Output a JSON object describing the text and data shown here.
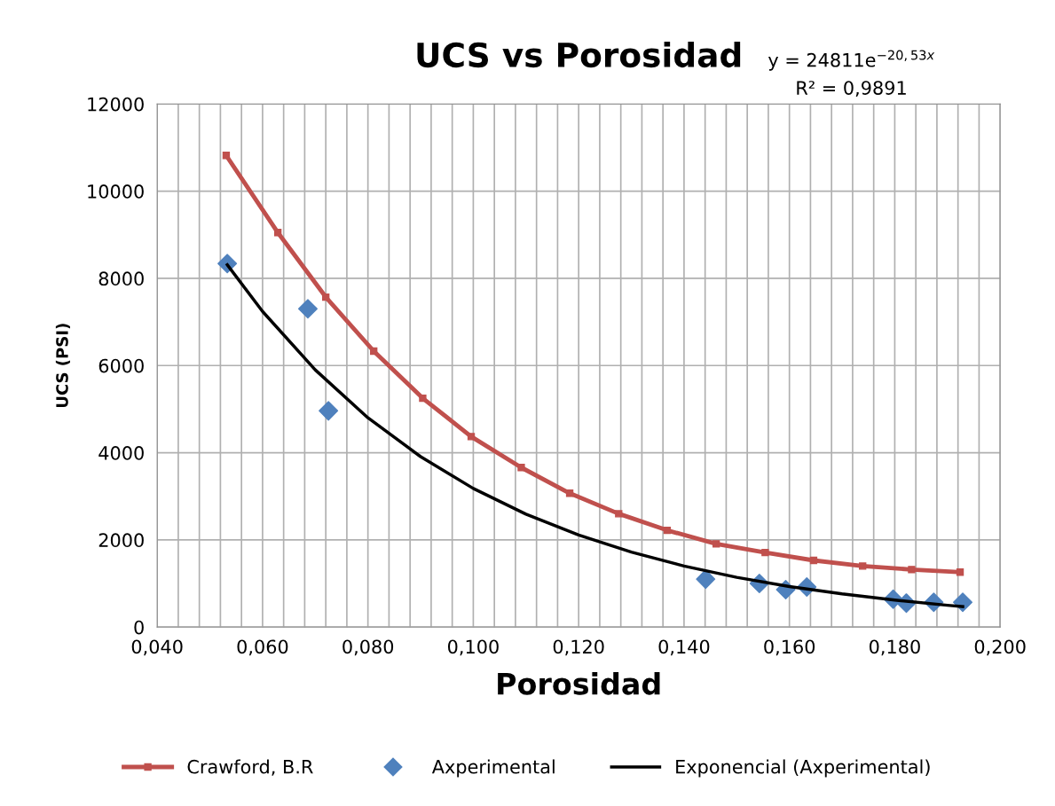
{
  "chart_data": {
    "type": "scatter",
    "title": "UCS vs Porosidad",
    "xlabel": "Porosidad",
    "ylabel": "UCS (PSI)",
    "annotations": [
      "y = 24811e$^{−20,53x}$",
      "R² = 0,9891"
    ],
    "xlim": [
      0.04,
      0.2
    ],
    "ylim": [
      0,
      12000
    ],
    "xticks": [
      {
        "value": 0.04,
        "label": "0,040"
      },
      {
        "value": 0.044,
        "label": null
      },
      {
        "value": 0.048,
        "label": null
      },
      {
        "value": 0.052,
        "label": null
      },
      {
        "value": 0.056,
        "label": null
      },
      {
        "value": 0.06,
        "label": "0,060"
      },
      {
        "value": 0.064,
        "label": null
      },
      {
        "value": 0.068,
        "label": null
      },
      {
        "value": 0.072,
        "label": null
      },
      {
        "value": 0.076,
        "label": null
      },
      {
        "value": 0.08,
        "label": "0,080"
      },
      {
        "value": 0.084,
        "label": null
      },
      {
        "value": 0.088,
        "label": null
      },
      {
        "value": 0.092,
        "label": null
      },
      {
        "value": 0.096,
        "label": null
      },
      {
        "value": 0.1,
        "label": "0,100"
      },
      {
        "value": 0.104,
        "label": null
      },
      {
        "value": 0.108,
        "label": null
      },
      {
        "value": 0.112,
        "label": null
      },
      {
        "value": 0.116,
        "label": null
      },
      {
        "value": 0.12,
        "label": "0,120"
      },
      {
        "value": 0.124,
        "label": null
      },
      {
        "value": 0.128,
        "label": null
      },
      {
        "value": 0.132,
        "label": null
      },
      {
        "value": 0.136,
        "label": null
      },
      {
        "value": 0.14,
        "label": "0,140"
      },
      {
        "value": 0.144,
        "label": null
      },
      {
        "value": 0.148,
        "label": null
      },
      {
        "value": 0.152,
        "label": null
      },
      {
        "value": 0.156,
        "label": null
      },
      {
        "value": 0.16,
        "label": "0,160"
      },
      {
        "value": 0.164,
        "label": null
      },
      {
        "value": 0.168,
        "label": null
      },
      {
        "value": 0.172,
        "label": null
      },
      {
        "value": 0.176,
        "label": null
      },
      {
        "value": 0.18,
        "label": "0,180"
      },
      {
        "value": 0.184,
        "label": null
      },
      {
        "value": 0.188,
        "label": null
      },
      {
        "value": 0.192,
        "label": null
      },
      {
        "value": 0.196,
        "label": null
      },
      {
        "value": 0.2,
        "label": "0,200"
      }
    ],
    "yticks": [
      0,
      2000,
      4000,
      6000,
      8000,
      10000,
      12000
    ],
    "grid": true,
    "legend": "bottom",
    "series": [
      {
        "name": "Crawford, B.R",
        "type": "line",
        "color": "#c0504d",
        "marker": "square",
        "line_style": "solid",
        "x": [
          0.0531,
          0.0629,
          0.072,
          0.0811,
          0.0904,
          0.0996,
          0.1091,
          0.1183,
          0.1276,
          0.1368,
          0.1461,
          0.1554,
          0.1646,
          0.1739,
          0.1832,
          0.1924
        ],
        "values": [
          10820,
          9050,
          7570,
          6330,
          5250,
          4370,
          3660,
          3070,
          2600,
          2220,
          1910,
          1710,
          1530,
          1400,
          1320,
          1260
        ]
      },
      {
        "name": "Axperimental",
        "color": "#4f81bd",
        "marker": "diamond",
        "x": [
          0.0533,
          0.0686,
          0.0725,
          0.1441,
          0.1543,
          0.1593,
          0.1633,
          0.1797,
          0.1822,
          0.1874,
          0.1929
        ],
        "values": [
          8340,
          7300,
          4960,
          1100,
          1000,
          860,
          920,
          640,
          550,
          570,
          570
        ]
      },
      {
        "name": "Exponencial (Axperimental)",
        "type": "line",
        "color": "#000000",
        "marker": "none",
        "line_style": "solid",
        "x": [
          0.0533,
          0.06,
          0.07,
          0.08,
          0.09,
          0.1,
          0.11,
          0.12,
          0.13,
          0.14,
          0.15,
          0.16,
          0.17,
          0.18,
          0.19,
          0.1929
        ],
        "values": [
          8310,
          7240,
          5900,
          4800,
          3910,
          3180,
          2590,
          2110,
          1720,
          1400,
          1140,
          930,
          760,
          620,
          500,
          470
        ]
      }
    ]
  }
}
